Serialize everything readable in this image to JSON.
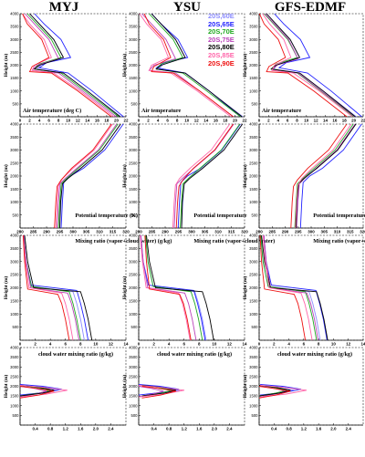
{
  "columns": [
    "MYJ",
    "YSU",
    "GFS-EDMF"
  ],
  "ylabel": "Height (m)",
  "series_colors": [
    "#8c8cff",
    "#2222ff",
    "#22aa22",
    "#bb44bb",
    "#000000",
    "#ff66aa",
    "#ee1111"
  ],
  "chart_data": [
    {
      "type": "line",
      "row": 0,
      "panels": [
        "MYJ",
        "YSU",
        "GFS-EDMF"
      ],
      "annotation": [
        "Air temperature (deg C)",
        "Air temperature",
        "Air temperature"
      ],
      "xlim": [
        0,
        22
      ],
      "ylim": [
        0,
        4000
      ],
      "x_ticks": [
        "0",
        "2",
        "4",
        "6",
        "8",
        "10",
        "12",
        "14",
        "16",
        "18",
        "20",
        "22"
      ],
      "y_ticks": [
        "500",
        "1000",
        "1500",
        "2000",
        "2500",
        "3000",
        "3500",
        "4000"
      ],
      "legend": [
        "20S,60E",
        "20S,65E",
        "20S,70E",
        "20S,75E",
        "20S,80E",
        "20S,85E",
        "20S,90E"
      ],
      "series": [
        {
          "name": "20S,60E",
          "x": [
            21.0,
            14,
            9,
            3.5,
            4.5,
            9,
            7,
            4,
            2
          ],
          "y": [
            0,
            1000,
            1700,
            1850,
            2050,
            2300,
            3000,
            3600,
            4000
          ]
        },
        {
          "name": "20S,65E",
          "x": [
            21.5,
            15,
            10,
            4,
            5.5,
            10.5,
            8.5,
            5,
            3
          ],
          "y": [
            0,
            1000,
            1700,
            1900,
            2100,
            2300,
            3000,
            3600,
            4000
          ]
        },
        {
          "name": "20S,70E",
          "x": [
            20.5,
            13.5,
            8.5,
            3,
            4,
            8.5,
            6.5,
            3.5,
            1.5
          ],
          "y": [
            0,
            1000,
            1700,
            1850,
            2050,
            2300,
            3000,
            3600,
            4000
          ]
        },
        {
          "name": "20S,75E",
          "x": [
            20.0,
            13,
            8,
            2.5,
            3.5,
            8,
            6,
            3,
            1
          ],
          "y": [
            0,
            1000,
            1700,
            1800,
            2000,
            2250,
            3000,
            3600,
            4000
          ]
        },
        {
          "name": "20S,80E",
          "x": [
            20.8,
            14,
            9,
            3,
            4,
            9,
            7,
            4,
            2
          ],
          "y": [
            0,
            1000,
            1700,
            1850,
            2000,
            2300,
            3000,
            3600,
            4000
          ]
        },
        {
          "name": "20S,85E",
          "x": [
            19.5,
            12.5,
            7,
            2.5,
            3,
            6.5,
            5,
            2,
            0.5
          ],
          "y": [
            0,
            1000,
            1700,
            1800,
            2000,
            2300,
            3000,
            3600,
            4000
          ]
        },
        {
          "name": "20S,90E",
          "x": [
            19.0,
            12,
            6.5,
            2,
            2.5,
            6,
            4.5,
            1.5,
            0.5
          ],
          "y": [
            0,
            1000,
            1700,
            1750,
            1950,
            2300,
            3000,
            3600,
            4000
          ]
        }
      ]
    },
    {
      "type": "line",
      "row": 1,
      "panels": [
        "MYJ",
        "YSU",
        "GFS-EDMF"
      ],
      "annotation": [
        "Potential temperature (K)",
        "Potential temperature",
        "Potential temperature"
      ],
      "xlim": [
        280,
        320
      ],
      "ylim": [
        0,
        4000
      ],
      "x_ticks": [
        "280",
        "285",
        "290",
        "295",
        "300",
        "305",
        "310",
        "315",
        "320"
      ],
      "y_ticks": [
        "500",
        "1000",
        "1500",
        "2000",
        "2500",
        "3000",
        "3500",
        "4000"
      ],
      "series": [
        {
          "name": "20S,60E",
          "x": [
            295,
            295.5,
            296,
            298,
            303,
            311,
            318
          ],
          "y": [
            0,
            1000,
            1700,
            1950,
            2300,
            3000,
            4000
          ]
        },
        {
          "name": "20S,65E",
          "x": [
            295.5,
            296,
            296.5,
            299,
            304,
            312,
            319
          ],
          "y": [
            0,
            1000,
            1750,
            2000,
            2300,
            3000,
            4000
          ]
        },
        {
          "name": "20S,70E",
          "x": [
            294.5,
            295,
            295.5,
            297.5,
            302,
            310,
            317
          ],
          "y": [
            0,
            1000,
            1700,
            1900,
            2300,
            3000,
            4000
          ]
        },
        {
          "name": "20S,75E",
          "x": [
            294,
            294.5,
            295,
            297,
            301.5,
            309.5,
            316.5
          ],
          "y": [
            0,
            1000,
            1700,
            1900,
            2300,
            3000,
            4000
          ]
        },
        {
          "name": "20S,80E",
          "x": [
            295,
            295.3,
            296,
            298,
            303,
            311,
            318
          ],
          "y": [
            0,
            1000,
            1700,
            1900,
            2300,
            3000,
            4000
          ]
        },
        {
          "name": "20S,85E",
          "x": [
            293.5,
            294,
            294.5,
            296,
            300,
            308,
            315
          ],
          "y": [
            0,
            1000,
            1650,
            1900,
            2300,
            3000,
            4000
          ]
        },
        {
          "name": "20S,90E",
          "x": [
            293,
            293.5,
            294,
            295.5,
            299.5,
            307.5,
            314.5
          ],
          "y": [
            0,
            1000,
            1600,
            1850,
            2300,
            3000,
            4000
          ]
        }
      ]
    },
    {
      "type": "line",
      "row": 2,
      "panels": [
        "MYJ",
        "YSU",
        "GFS-EDMF"
      ],
      "annotation": [
        "Mixing ratio (vapor+cloud water) (g/kg)",
        "Mixing ratio (vapor+cloud water)",
        "Mixing ratio (vapor+cloud water)"
      ],
      "xlim": [
        0,
        14
      ],
      "ylim": [
        0,
        4000
      ],
      "x_ticks": [
        "0",
        "2",
        "4",
        "6",
        "8",
        "10",
        "12",
        "14"
      ],
      "y_ticks": [
        "500",
        "1000",
        "1500",
        "2000",
        "2500",
        "3000",
        "3500",
        "4000"
      ],
      "series": [
        {
          "name": "20S,60E",
          "x": [
            8.5,
            8,
            7.5,
            7,
            1.5,
            0.8,
            0.5
          ],
          "y": [
            0,
            800,
            1400,
            1850,
            2050,
            3000,
            4000
          ]
        },
        {
          "name": "20S,65E",
          "x": [
            9,
            8.5,
            8,
            7.5,
            1.5,
            0.8,
            0.5
          ],
          "y": [
            0,
            800,
            1400,
            1900,
            2100,
            3000,
            4000
          ]
        },
        {
          "name": "20S,70E",
          "x": [
            8,
            7.5,
            7,
            6.5,
            1.5,
            0.8,
            0.5
          ],
          "y": [
            0,
            800,
            1400,
            1850,
            2050,
            3000,
            4000
          ]
        },
        {
          "name": "20S,75E",
          "x": [
            7.8,
            7.3,
            6.8,
            6.3,
            1.4,
            0.8,
            0.5
          ],
          "y": [
            0,
            800,
            1400,
            1800,
            2000,
            3000,
            4000
          ]
        },
        {
          "name": "20S,80E",
          "x": [
            9.5,
            9,
            8.5,
            8,
            1.8,
            1,
            0.6
          ],
          "y": [
            0,
            800,
            1400,
            1850,
            2000,
            3000,
            4000
          ]
        },
        {
          "name": "20S,85E",
          "x": [
            7,
            6.5,
            6,
            5.5,
            1.2,
            0.7,
            0.4
          ],
          "y": [
            0,
            800,
            1400,
            1800,
            2000,
            3000,
            4000
          ]
        },
        {
          "name": "20S,90E",
          "x": [
            6.5,
            6,
            5.5,
            5,
            1,
            0.6,
            0.4
          ],
          "y": [
            0,
            800,
            1400,
            1750,
            1950,
            3000,
            4000
          ]
        }
      ]
    },
    {
      "type": "line",
      "row": 3,
      "panels": [
        "MYJ",
        "YSU",
        "GFS-EDMF"
      ],
      "annotation": [
        "cloud water mixing ratio (g/kg)",
        "cloud water mixing ratio (g/kg)",
        "cloud water mixing ratio (g/kg)"
      ],
      "xlim": [
        0,
        2.8
      ],
      "ylim": [
        0,
        4000
      ],
      "x_ticks": [
        "0.4",
        "0.8",
        "1.2",
        "1.6",
        "2.0",
        "2.4"
      ],
      "y_ticks": [
        "500",
        "1000",
        "1500",
        "2000",
        "2500",
        "3000",
        "3500",
        "4000"
      ],
      "series": [
        {
          "name": "20S,60E",
          "x": [
            0,
            0.6,
            1.0,
            0.5,
            0
          ],
          "y": [
            1500,
            1650,
            1800,
            1950,
            2050
          ]
        },
        {
          "name": "20S,65E",
          "x": [
            0,
            0.7,
            1.1,
            0.6,
            0
          ],
          "y": [
            1550,
            1700,
            1850,
            2000,
            2100
          ]
        },
        {
          "name": "20S,70E",
          "x": [
            0,
            0.5,
            0.8,
            0.4,
            0
          ],
          "y": [
            1500,
            1650,
            1800,
            1950,
            2050
          ]
        },
        {
          "name": "20S,75E",
          "x": [
            0,
            0.4,
            0.7,
            0.35,
            0
          ],
          "y": [
            1450,
            1600,
            1750,
            1900,
            2000
          ]
        },
        {
          "name": "20S,80E",
          "x": [
            0,
            0.6,
            0.9,
            0.5,
            0
          ],
          "y": [
            1500,
            1650,
            1800,
            1950,
            2050
          ]
        },
        {
          "name": "20S,85E",
          "x": [
            0,
            0.7,
            1.25,
            0.6,
            0
          ],
          "y": [
            1450,
            1600,
            1800,
            1950,
            2050
          ]
        },
        {
          "name": "20S,90E",
          "x": [
            0,
            0.5,
            0.9,
            0.4,
            0
          ],
          "y": [
            1400,
            1550,
            1750,
            1900,
            2000
          ]
        }
      ]
    }
  ]
}
